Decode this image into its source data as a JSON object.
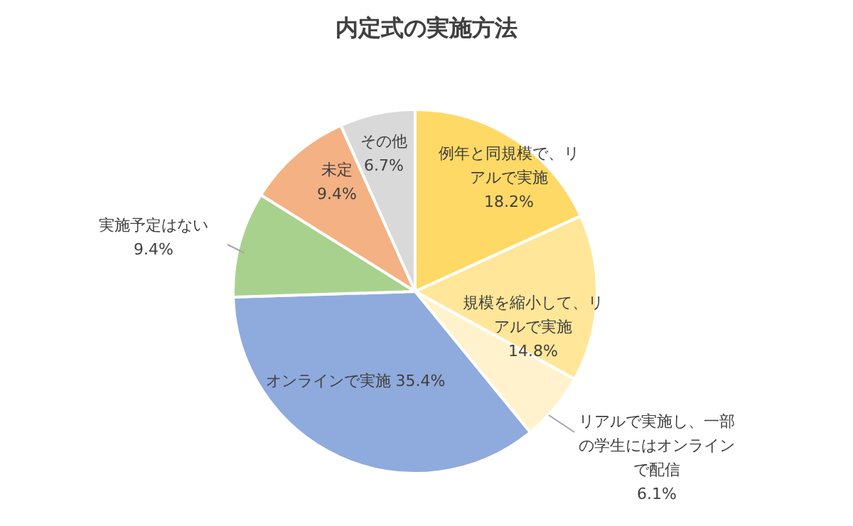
{
  "chart_data": {
    "type": "pie",
    "title": "内定式の実施方法",
    "categories": [
      "例年と同規模で、リアルで実施",
      "規模を縮小して、リアルで実施",
      "リアルで実施し、一部の学生にはオンラインで配信",
      "オンラインで実施",
      "実施予定はない",
      "未定",
      "その他"
    ],
    "values": [
      18.2,
      14.8,
      6.1,
      35.4,
      9.4,
      9.4,
      6.7
    ],
    "value_labels": [
      "18.2%",
      "14.8%",
      "6.1%",
      "35.4%",
      "9.4%",
      "9.4%",
      "6.7%"
    ],
    "colors": [
      "#ffd966",
      "#ffe699",
      "#fff2cc",
      "#8faadc",
      "#a9d18e",
      "#f4b183",
      "#d9d9d9"
    ]
  }
}
